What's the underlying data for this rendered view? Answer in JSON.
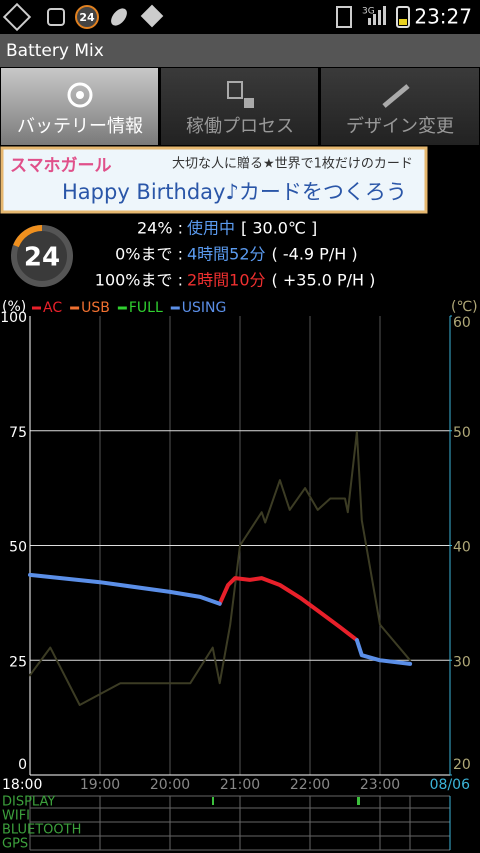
{
  "status_bar": {
    "network": "3G",
    "time": "23:27"
  },
  "app_title": "Battery Mix",
  "tabs": [
    "バッテリー情報",
    "稼働プロセス",
    "デザイン変更"
  ],
  "ad": {
    "brand": "スマホガール",
    "tagline": "大切な人に贈る★世界で1枚だけのカード",
    "headline": "Happy Birthday♪カードをつくろう"
  },
  "battery": {
    "badge": "24",
    "lines": [
      {
        "label": "24% :",
        "value": "使用中",
        "detail": "[ 30.0℃ ]"
      },
      {
        "label": "0%まで :",
        "value": "4時間52分",
        "detail": "( -4.9 P/H )"
      },
      {
        "label": "100%まで :",
        "value": "2時間10分",
        "detail": "( +35.0 P/H )"
      }
    ]
  },
  "chart_data": {
    "type": "line",
    "y_label": "(%)",
    "y2_label": "(℃)",
    "xlim": [
      18,
      24
    ],
    "xticks": [
      {
        "value": 18,
        "label": "18:00"
      },
      {
        "value": 19,
        "label": "19:00"
      },
      {
        "value": 20,
        "label": "20:00"
      },
      {
        "value": 21,
        "label": "21:00"
      },
      {
        "value": 22,
        "label": "22:00"
      },
      {
        "value": 23,
        "label": "23:00"
      },
      {
        "value": 24,
        "label": "08/06"
      }
    ],
    "ylim": [
      0,
      100
    ],
    "yticks": [
      0,
      25,
      50,
      75,
      100
    ],
    "y2lim": [
      20,
      60
    ],
    "y2ticks": [
      20,
      30,
      40,
      50,
      60
    ],
    "grid": true,
    "legend": "top-left",
    "series": [
      {
        "name": "AC",
        "color": "#e8202a",
        "x": [
          20.71,
          20.83,
          20.93,
          21.14,
          21.31,
          21.57,
          21.86,
          22.14,
          22.43,
          22.67
        ],
        "values": [
          37.3,
          41.4,
          42.9,
          42.5,
          42.9,
          41.4,
          38.6,
          35.5,
          32.2,
          29.4
        ]
      },
      {
        "name": "USB",
        "color": "#f07030",
        "x": [],
        "values": []
      },
      {
        "name": "FULL",
        "color": "#30d030",
        "x": [],
        "values": []
      },
      {
        "name": "USING",
        "color": "#5b8fe8",
        "x": [
          18,
          19,
          20,
          20.43,
          20.71,
          22,
          22.67,
          22.74,
          23,
          23.43
        ],
        "values": [
          43.6,
          42,
          39.9,
          38.8,
          37.3,
          null,
          29.4,
          26.1,
          25,
          24.2
        ]
      }
    ],
    "temperature": {
      "color": "#3c3c24",
      "axis": "y2",
      "x": [
        18,
        18.29,
        18.71,
        19.29,
        20.29,
        20.61,
        20.71,
        20.86,
        21,
        21.31,
        21.36,
        21.57,
        21.71,
        21.93,
        22.11,
        22.29,
        22.5,
        22.54,
        22.67,
        22.74,
        23,
        23.43
      ],
      "values": [
        28.7,
        31.1,
        26.1,
        28,
        28,
        31.1,
        28,
        33.1,
        40,
        42.9,
        42,
        45.7,
        43.1,
        45,
        43.1,
        44.1,
        44.1,
        42.9,
        49.9,
        42.2,
        33.1,
        30
      ]
    }
  },
  "status_rows": [
    "DISPLAY",
    "WIFI",
    "BLUETOOTH",
    "GPS"
  ]
}
